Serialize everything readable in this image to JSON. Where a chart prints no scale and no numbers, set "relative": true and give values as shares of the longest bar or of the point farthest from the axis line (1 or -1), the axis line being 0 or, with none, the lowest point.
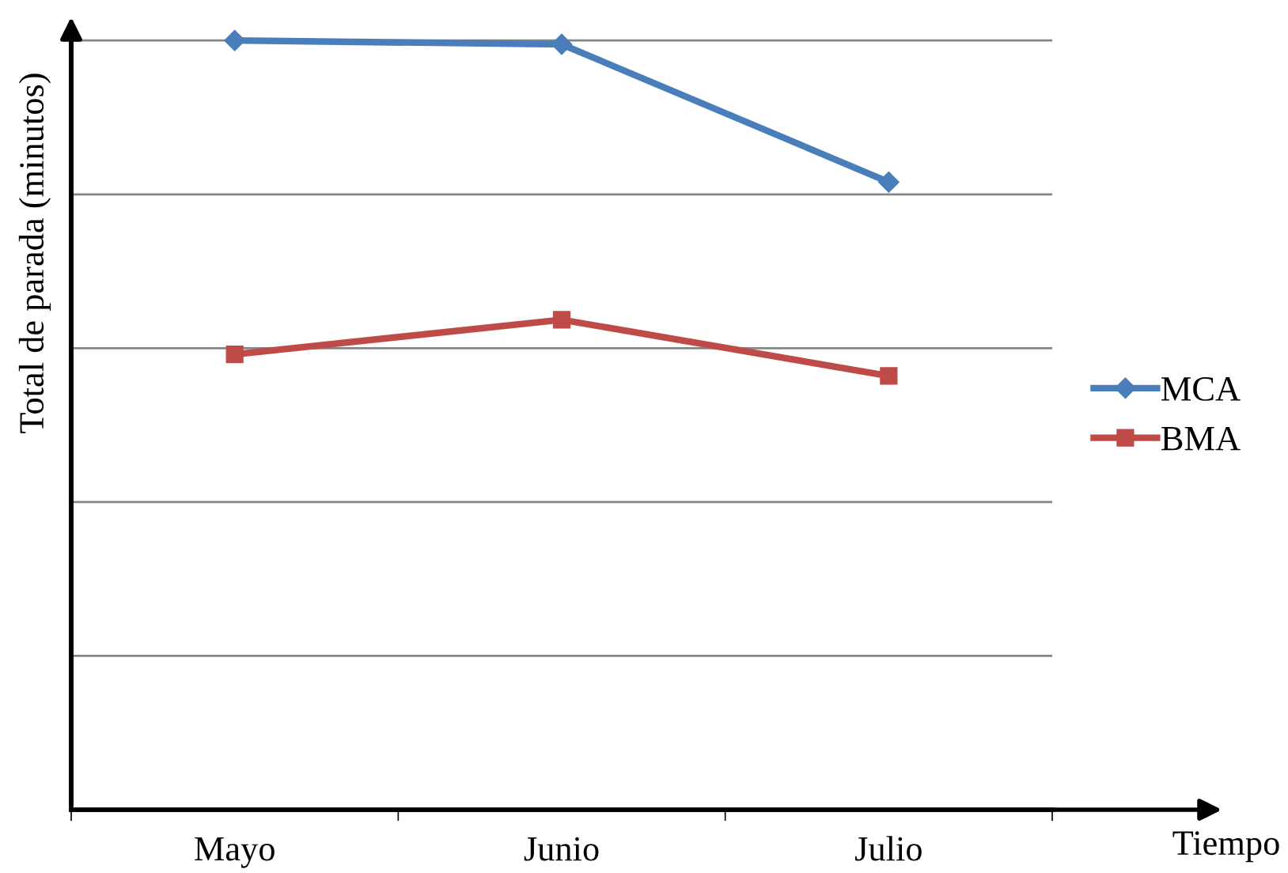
{
  "chart_data": {
    "type": "line",
    "xlabel": "Tiempo",
    "ylabel": "Total de parada (minutos)",
    "categories": [
      "Mayo",
      "Junio",
      "Julio"
    ],
    "relative": true,
    "series": [
      {
        "name": "MCA",
        "color": "#4a7ebb",
        "marker": "diamond",
        "values": [
          1,
          0.995,
          0.816
        ]
      },
      {
        "name": "BMA",
        "color": "#be4b48",
        "marker": "square",
        "values": [
          0.592,
          0.637,
          0.564
        ]
      }
    ],
    "grid": "y",
    "legend": "right",
    "line_style": "solid"
  }
}
